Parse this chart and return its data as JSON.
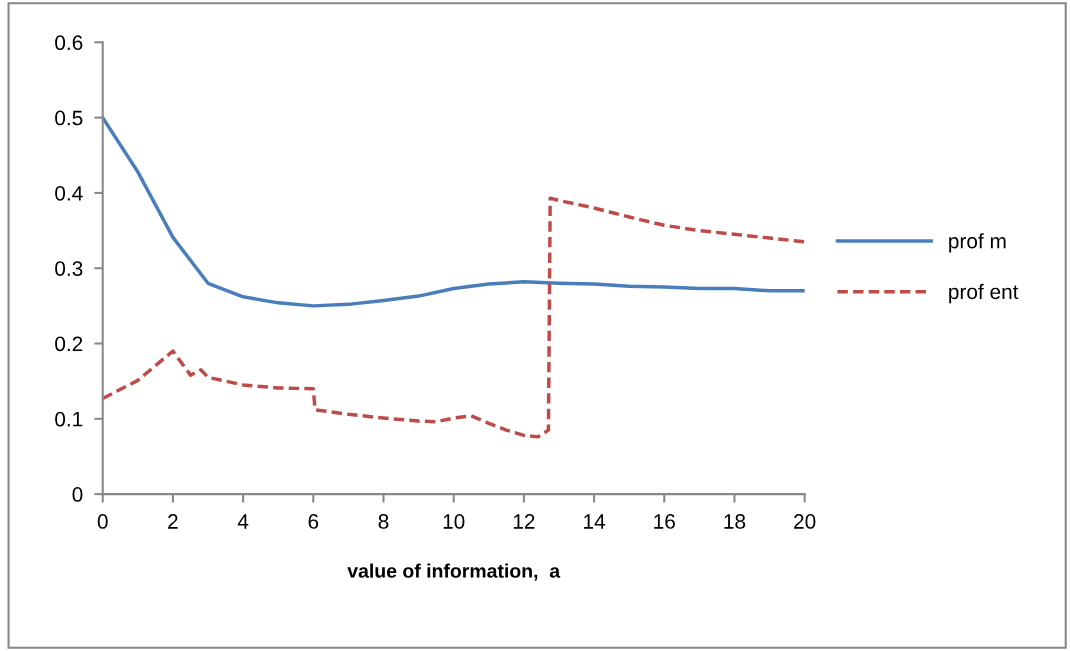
{
  "chart_data": {
    "type": "line",
    "xlabel": "value of information,  a",
    "xlim": [
      0,
      20
    ],
    "xticks": [
      0,
      2,
      4,
      6,
      8,
      10,
      12,
      14,
      16,
      18,
      20
    ],
    "ylim": [
      0,
      0.6
    ],
    "yticks": [
      0,
      0.1,
      0.2,
      0.3,
      0.4,
      0.5,
      0.6
    ],
    "grid": false,
    "legend": "right",
    "marker": "none",
    "series": [
      {
        "name": "prof m",
        "color": "#4a7ebb",
        "line_style": "solid",
        "x": [
          0,
          1,
          2,
          3,
          4,
          5,
          6,
          7,
          8,
          9,
          10,
          11,
          12,
          13,
          14,
          15,
          16,
          17,
          18,
          19,
          20
        ],
        "values": [
          0.5,
          0.428,
          0.341,
          0.28,
          0.262,
          0.254,
          0.25,
          0.252,
          0.257,
          0.263,
          0.273,
          0.279,
          0.282,
          0.28,
          0.279,
          0.276,
          0.275,
          0.273,
          0.273,
          0.27,
          0.27
        ]
      },
      {
        "name": "prof ent",
        "color": "#be4b48",
        "line_style": "dashed",
        "x": [
          0,
          1,
          2,
          2.5,
          2.8,
          3,
          4,
          5,
          6,
          6.05,
          7,
          8,
          9,
          9.5,
          10,
          10.5,
          11,
          11.5,
          12,
          12.4,
          12.7,
          12.75,
          13,
          14,
          15,
          16,
          17,
          18,
          19,
          20
        ],
        "values": [
          0.127,
          0.151,
          0.19,
          0.158,
          0.165,
          0.155,
          0.145,
          0.141,
          0.14,
          0.112,
          0.106,
          0.101,
          0.097,
          0.096,
          0.101,
          0.104,
          0.094,
          0.085,
          0.078,
          0.076,
          0.085,
          0.393,
          0.39,
          0.38,
          0.368,
          0.357,
          0.35,
          0.345,
          0.34,
          0.335
        ]
      }
    ]
  }
}
